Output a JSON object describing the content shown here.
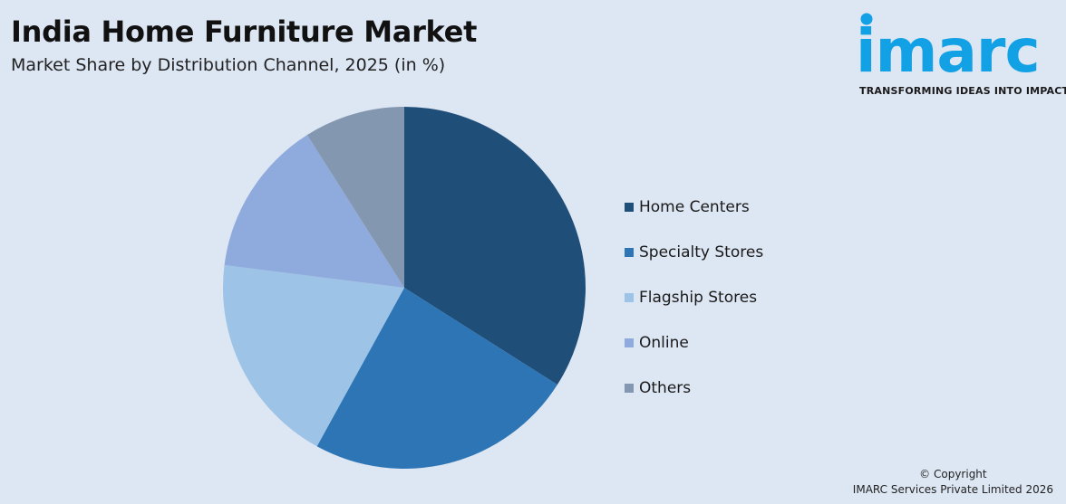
{
  "header": {
    "title": "India Home Furniture Market",
    "subtitle": "Market Share by Distribution Channel, 2025 (in %)"
  },
  "logo": {
    "wordmark": "imarc",
    "tagline": "TRANSFORMING IDEAS INTO IMPACT",
    "color": "#13a1e6"
  },
  "footer": {
    "copyright": "© Copyright",
    "company": "IMARC Services Private Limited 2026"
  },
  "chart_data": {
    "type": "pie",
    "title": "India Home Furniture Market",
    "subtitle": "Market Share by Distribution Channel, 2025 (in %)",
    "categories": [
      "Home Centers",
      "Specialty Stores",
      "Flagship Stores",
      "Online",
      "Others"
    ],
    "values": [
      34,
      24,
      19,
      14,
      9
    ],
    "colors": [
      "#1f4e79",
      "#2e75b6",
      "#9dc3e6",
      "#8faadc",
      "#8497b0"
    ],
    "legend": "right",
    "start": "top, clockwise"
  }
}
